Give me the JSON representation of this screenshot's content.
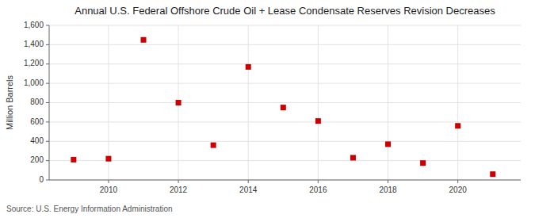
{
  "chart_data": {
    "type": "scatter",
    "title": "Annual U.S. Federal Offshore Crude Oil + Lease Condensate Reserves Revision Decreases",
    "ylabel": "Million Barrels",
    "source": "Source: U.S. Energy Information Administration",
    "x": [
      2009,
      2010,
      2011,
      2012,
      2013,
      2014,
      2015,
      2016,
      2017,
      2018,
      2019,
      2020,
      2021
    ],
    "values": [
      210,
      220,
      1450,
      800,
      360,
      1170,
      750,
      610,
      230,
      370,
      175,
      560,
      60
    ],
    "color": "#cc0000",
    "marker": "square",
    "grid": true,
    "xlim": [
      2008.3,
      2021.8
    ],
    "xticks": [
      2010,
      2012,
      2014,
      2016,
      2018,
      2020
    ],
    "ylim": [
      0,
      1600
    ],
    "yticks": [
      0,
      200,
      400,
      600,
      800,
      {
        "value": 1000,
        "label": "1,000"
      },
      {
        "value": 1200,
        "label": "1,200"
      },
      {
        "value": 1400,
        "label": "1,400"
      },
      {
        "value": 1600,
        "label": "1,600"
      }
    ]
  }
}
